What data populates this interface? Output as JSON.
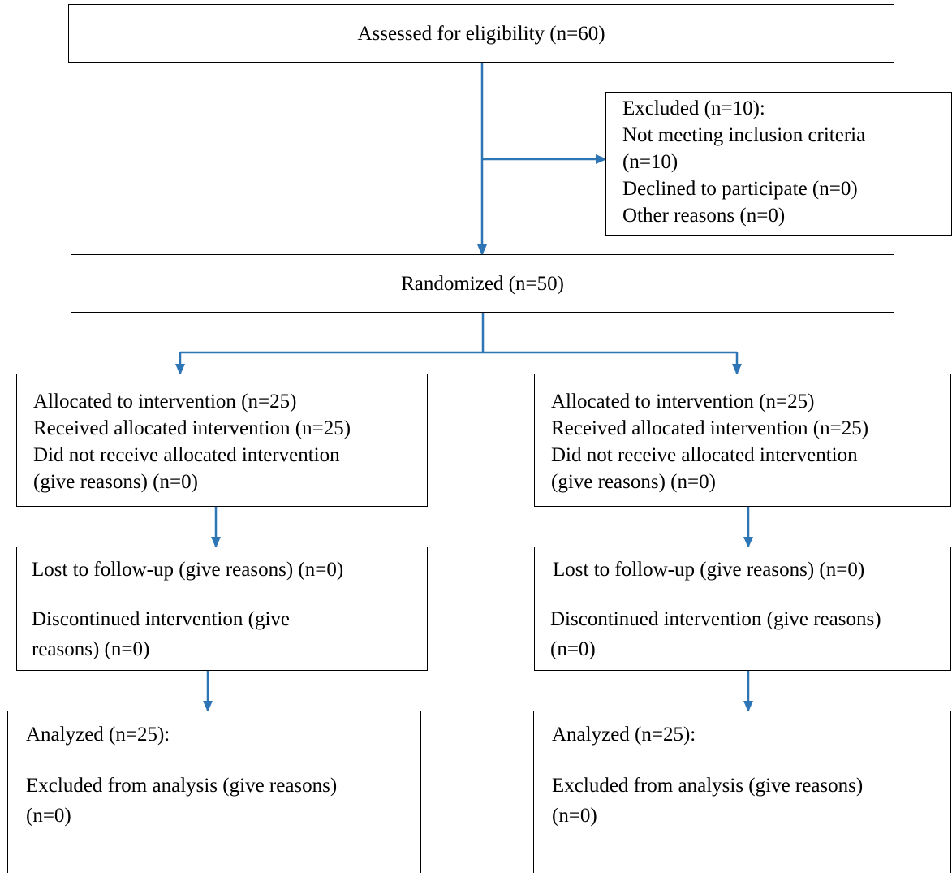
{
  "colors": {
    "arrow": "#2e75b6",
    "border": "#000000",
    "text": "#000000",
    "background": "#ffffff"
  },
  "enrollment": {
    "assessed": "Assessed for eligibility (n=60)",
    "excluded": [
      "Excluded (n=10):",
      "Not meeting inclusion criteria",
      "(n=10)",
      "Declined to participate (n=0)",
      "Other reasons (n=0)"
    ],
    "randomized": "Randomized (n=50)"
  },
  "arms": [
    {
      "allocation": [
        "Allocated to intervention (n=25)",
        "Received allocated intervention (n=25)",
        "Did not receive allocated intervention",
        "(give reasons) (n=0)"
      ],
      "followup": {
        "lost": "Lost to follow-up (give reasons) (n=0)",
        "discontinued": [
          "Discontinued intervention (give",
          "reasons) (n=0)"
        ]
      },
      "analysis": {
        "analyzed": "Analyzed (n=25):",
        "excluded": [
          "Excluded from analysis (give reasons)",
          "(n=0)"
        ]
      }
    },
    {
      "allocation": [
        "Allocated to intervention (n=25)",
        "Received allocated intervention (n=25)",
        "Did not receive allocated intervention",
        "(give reasons) (n=0)"
      ],
      "followup": {
        "lost": "Lost to follow-up (give reasons) (n=0)",
        "discontinued": [
          "Discontinued intervention (give reasons)",
          "(n=0)"
        ]
      },
      "analysis": {
        "analyzed": "Analyzed (n=25):",
        "excluded": [
          "Excluded from analysis (give reasons)",
          "(n=0)"
        ]
      }
    }
  ]
}
